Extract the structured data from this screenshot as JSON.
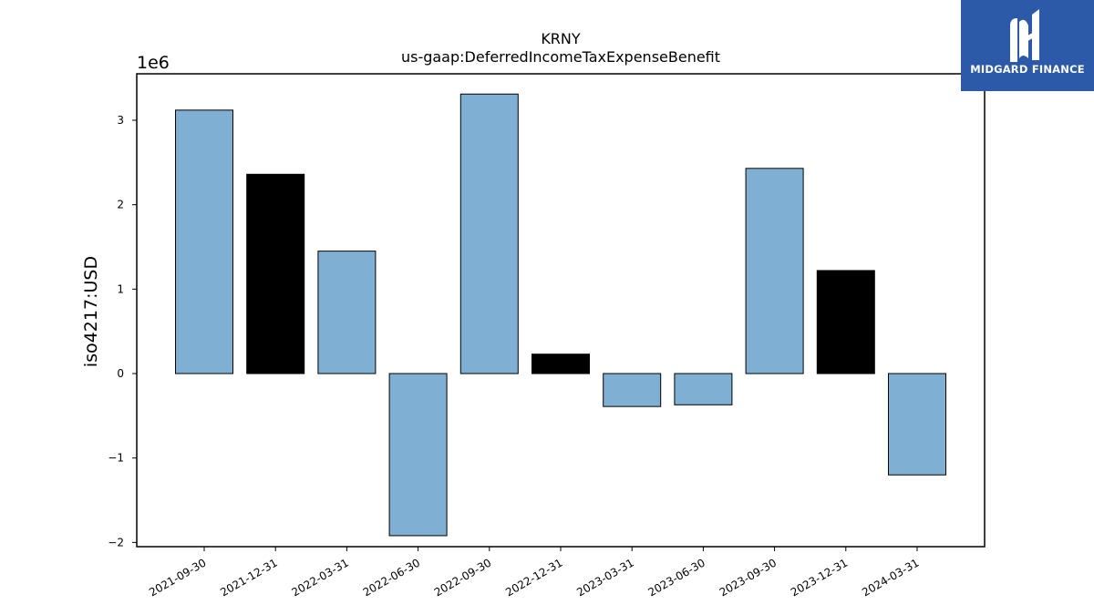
{
  "brand": {
    "name": "MIDGARD FINANCE",
    "bg_color": "#2c5aa8"
  },
  "chart_data": {
    "type": "bar",
    "title": "KRNY",
    "subtitle": "us-gaap:DeferredIncomeTaxExpenseBenefit",
    "ylabel": "iso4217:USD",
    "xlabel": "",
    "offset_label": "1e6",
    "ylim": [
      -2050000,
      3550000
    ],
    "yticks": [
      -2000000,
      -1000000,
      0,
      1000000,
      2000000,
      3000000
    ],
    "ytick_labels": [
      "−2",
      "−1",
      "0",
      "1",
      "2",
      "3"
    ],
    "categories": [
      "2021-09-30",
      "2021-12-31",
      "2022-03-31",
      "2022-06-30",
      "2022-09-30",
      "2022-12-31",
      "2023-03-31",
      "2023-06-30",
      "2023-09-30",
      "2023-12-31",
      "2024-03-31"
    ],
    "values": [
      3120000,
      2360000,
      1450000,
      -1920000,
      3310000,
      230000,
      -390000,
      -370000,
      2430000,
      1220000,
      -1200000
    ],
    "colors": [
      "#7fb0d4",
      "#000000",
      "#7fb0d4",
      "#7fb0d4",
      "#7fb0d4",
      "#000000",
      "#7fb0d4",
      "#7fb0d4",
      "#7fb0d4",
      "#000000",
      "#7fb0d4"
    ],
    "grid": false,
    "legend": "none"
  }
}
